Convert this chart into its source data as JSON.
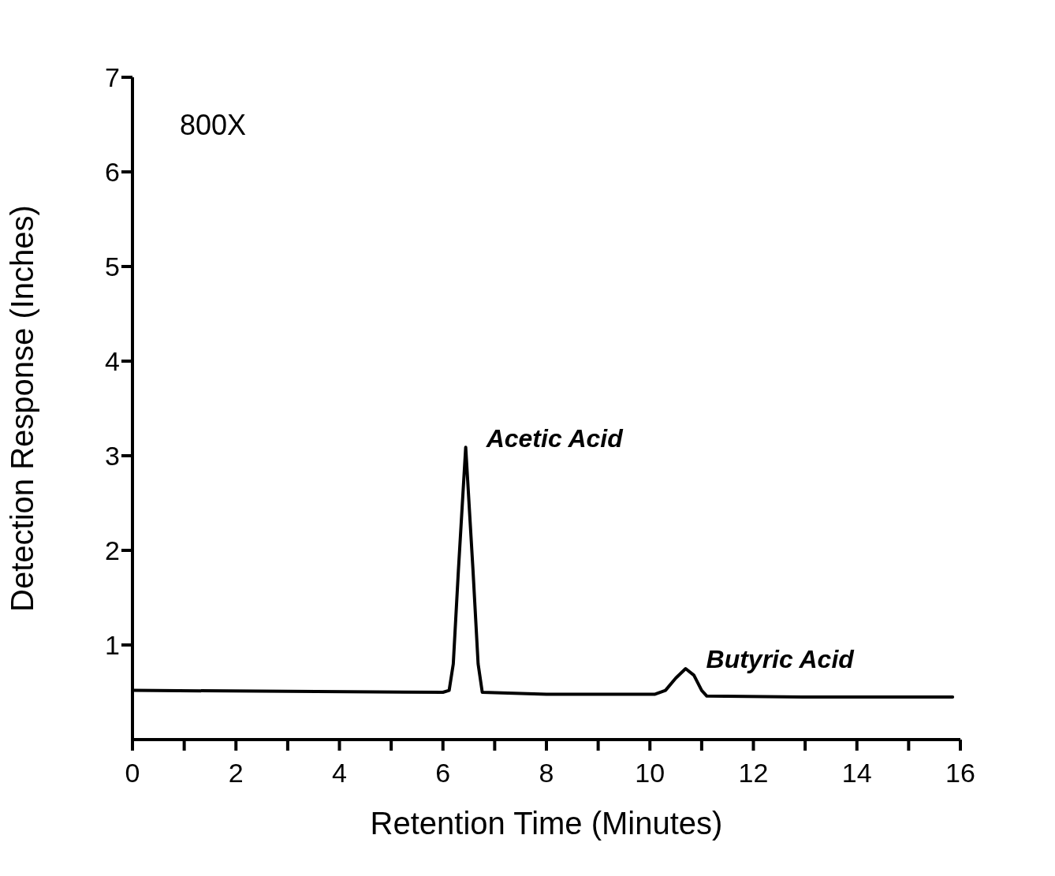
{
  "chart_data": {
    "type": "line",
    "xlabel": "Retention Time (Minutes)",
    "ylabel": "Detection Response (Inches)",
    "annotations": [
      "800X",
      {
        "text": "Acetic Acid",
        "x": 6.44,
        "y": 3.09
      },
      {
        "text": "Butyric Acid",
        "x": 10.69,
        "y": 0.75
      }
    ],
    "xlim": [
      0,
      16
    ],
    "ylim": [
      0,
      7
    ],
    "xticks": [
      0,
      {
        "value": 1,
        "label": null
      },
      2,
      {
        "value": 3,
        "label": null
      },
      4,
      {
        "value": 5,
        "label": null
      },
      6,
      {
        "value": 7,
        "label": null
      },
      8,
      {
        "value": 9,
        "label": null
      },
      10,
      {
        "value": 11,
        "label": null
      },
      12,
      {
        "value": 13,
        "label": null
      },
      14,
      {
        "value": 15,
        "label": null
      },
      16
    ],
    "yticks": [
      1,
      2,
      3,
      4,
      5,
      6,
      7
    ],
    "grid": false,
    "marker": "none",
    "line_style": "solid",
    "series": [
      {
        "color": "#000000",
        "x": [
          0,
          3,
          6.0,
          6.12,
          6.2,
          6.3,
          6.44,
          6.58,
          6.68,
          6.76,
          8,
          10.1,
          10.3,
          10.5,
          10.69,
          10.85,
          11.0,
          11.1,
          13,
          15.85
        ],
        "values": [
          0.52,
          0.51,
          0.5,
          0.52,
          0.8,
          1.8,
          3.09,
          1.8,
          0.8,
          0.5,
          0.48,
          0.48,
          0.52,
          0.65,
          0.75,
          0.68,
          0.52,
          0.46,
          0.45,
          0.45
        ]
      }
    ]
  }
}
